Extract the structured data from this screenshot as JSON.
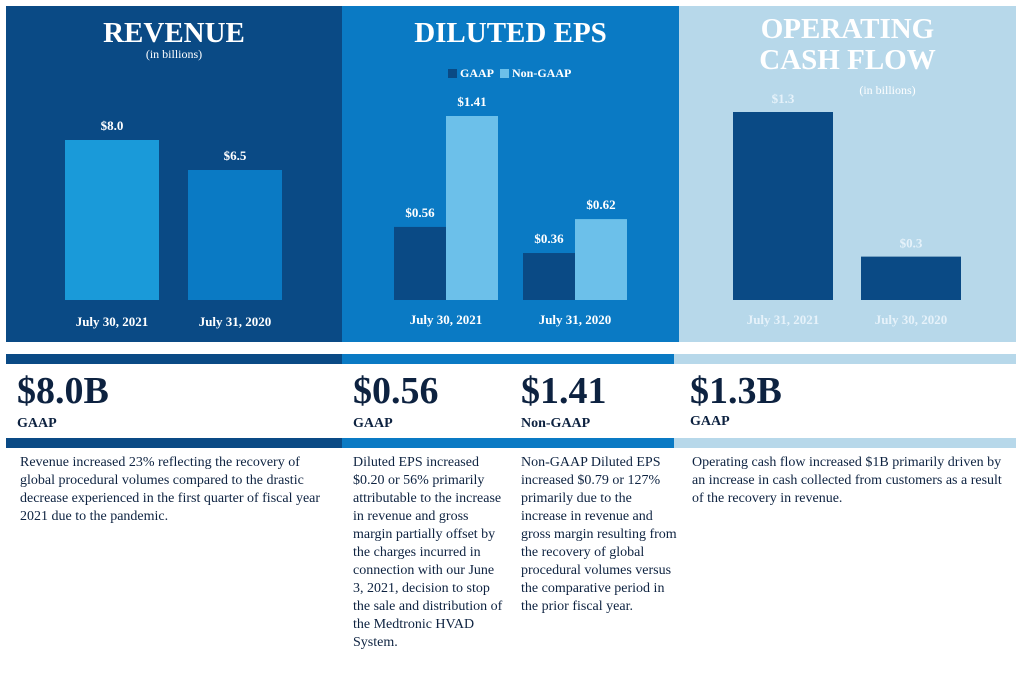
{
  "colors": {
    "revenue_panel": "#0a4a85",
    "eps_panel": "#0a7ac4",
    "ocf_panel": "#b7d8ea",
    "bar_light_blue": "#1a9ad9",
    "bar_mid_blue": "#0a7ac4",
    "bar_dark_navy": "#0a4a85",
    "bar_pale_blue": "#6cc0ea",
    "text_navy": "#0d2240"
  },
  "chart_data": [
    {
      "type": "bar",
      "title": "REVENUE",
      "subtitle": "(in billions)",
      "categories": [
        "July 30, 2021",
        "July 31, 2020"
      ],
      "values": [
        8.0,
        6.5
      ],
      "data_labels": [
        "$8.0",
        "$6.5"
      ],
      "ylim": [
        0,
        11.5
      ],
      "bar_colors": [
        "#1a9ad9",
        "#0a7ac4"
      ]
    },
    {
      "type": "bar",
      "title": "DILUTED EPS",
      "subtitle": "",
      "categories": [
        "July 30, 2021",
        "July 31, 2020"
      ],
      "series": [
        {
          "name": "GAAP",
          "values": [
            0.56,
            0.36
          ],
          "data_labels": [
            "$0.56",
            "$0.36"
          ],
          "color": "#0a4a85"
        },
        {
          "name": "Non-GAAP",
          "values": [
            1.41,
            0.62
          ],
          "data_labels": [
            "$1.41",
            "$0.62"
          ],
          "color": "#6cc0ea"
        }
      ],
      "ylim": [
        0,
        1.41
      ],
      "legend": "top-center"
    },
    {
      "type": "bar",
      "title": "OPERATING CASH FLOW",
      "subtitle": "(in billions)",
      "categories": [
        "July 31, 2021",
        "July 30, 2020"
      ],
      "values": [
        1.3,
        0.3
      ],
      "data_labels": [
        "$1.3",
        "$0.3"
      ],
      "ylim": [
        0,
        1.3
      ],
      "bar_colors": [
        "#0a4a85",
        "#0a4a85"
      ]
    }
  ],
  "summary": {
    "revenue": {
      "value": "$8.0B",
      "tag": "GAAP",
      "text": "Revenue increased 23% reflecting the recovery of global procedural volumes compared to the drastic decrease experienced in the first quarter of fiscal year 2021 due to the pandemic."
    },
    "eps_gaap": {
      "value": "$0.56",
      "tag": "GAAP",
      "text": "Diluted EPS increased $0.20 or 56% primarily attributable to the increase in revenue and gross margin partially offset by the charges incurred in connection with our June 3, 2021, decision to stop the sale and distribution of the Medtronic HVAD System."
    },
    "eps_nongaap": {
      "value": "$1.41",
      "tag": "Non-GAAP",
      "text": "Non-GAAP Diluted EPS increased $0.79 or 127% primarily due to the increase in revenue and gross margin resulting from the recovery of global procedural volumes versus the comparative period in the prior fiscal year."
    },
    "ocf": {
      "value": "$1.3B",
      "tag": "GAAP",
      "text": "Operating cash flow increased $1B primarily driven by an increase in cash collected from customers as a result of the recovery in revenue."
    }
  }
}
